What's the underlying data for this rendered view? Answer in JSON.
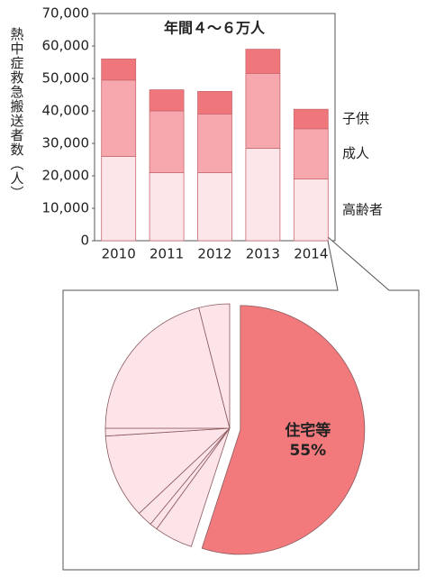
{
  "chart_data": [
    {
      "type": "stacked-bar",
      "y_label": "熱中症救急搬送者数（人）",
      "annotation": "年間４～６万人",
      "categories": [
        "2010",
        "2011",
        "2012",
        "2013",
        "2014"
      ],
      "series": [
        {
          "name": "高齢者",
          "color": "#fde6ea",
          "values": [
            26000,
            21000,
            21000,
            28500,
            19000
          ]
        },
        {
          "name": "成人",
          "color": "#f7a7ae",
          "values": [
            23500,
            19000,
            18000,
            23000,
            15500
          ]
        },
        {
          "name": "子供",
          "color": "#ef767b",
          "values": [
            6500,
            6500,
            7000,
            7500,
            6000
          ]
        }
      ],
      "ylim": [
        0,
        70000
      ],
      "yticks": [
        0,
        {
          "value": 10000,
          "label": "10,000"
        },
        {
          "value": 20000,
          "label": "20,000"
        },
        {
          "value": 30000,
          "label": "30,000"
        },
        {
          "value": 40000,
          "label": "40,000"
        },
        {
          "value": 50000,
          "label": "50,000"
        },
        {
          "value": 60000,
          "label": "60,000"
        },
        {
          "value": 70000,
          "label": "70,000"
        }
      ],
      "grid": false
    },
    {
      "type": "pie",
      "categories": [
        "住宅等",
        null,
        null,
        null,
        null,
        null,
        null,
        null
      ],
      "values": [
        55,
        5,
        1,
        2,
        11,
        1,
        21,
        4
      ],
      "value_labels": [
        "55%",
        null,
        null,
        null,
        null,
        null,
        null,
        null
      ],
      "colors": [
        "#f27a7c",
        "#fce4e8",
        "#fce4e8",
        "#fce4e8",
        "#fce4e8",
        "#fce4e8",
        "#fce4e8",
        "#fce4e8"
      ],
      "exploded": [
        true,
        false,
        false,
        false,
        false,
        false,
        false,
        false
      ]
    }
  ]
}
